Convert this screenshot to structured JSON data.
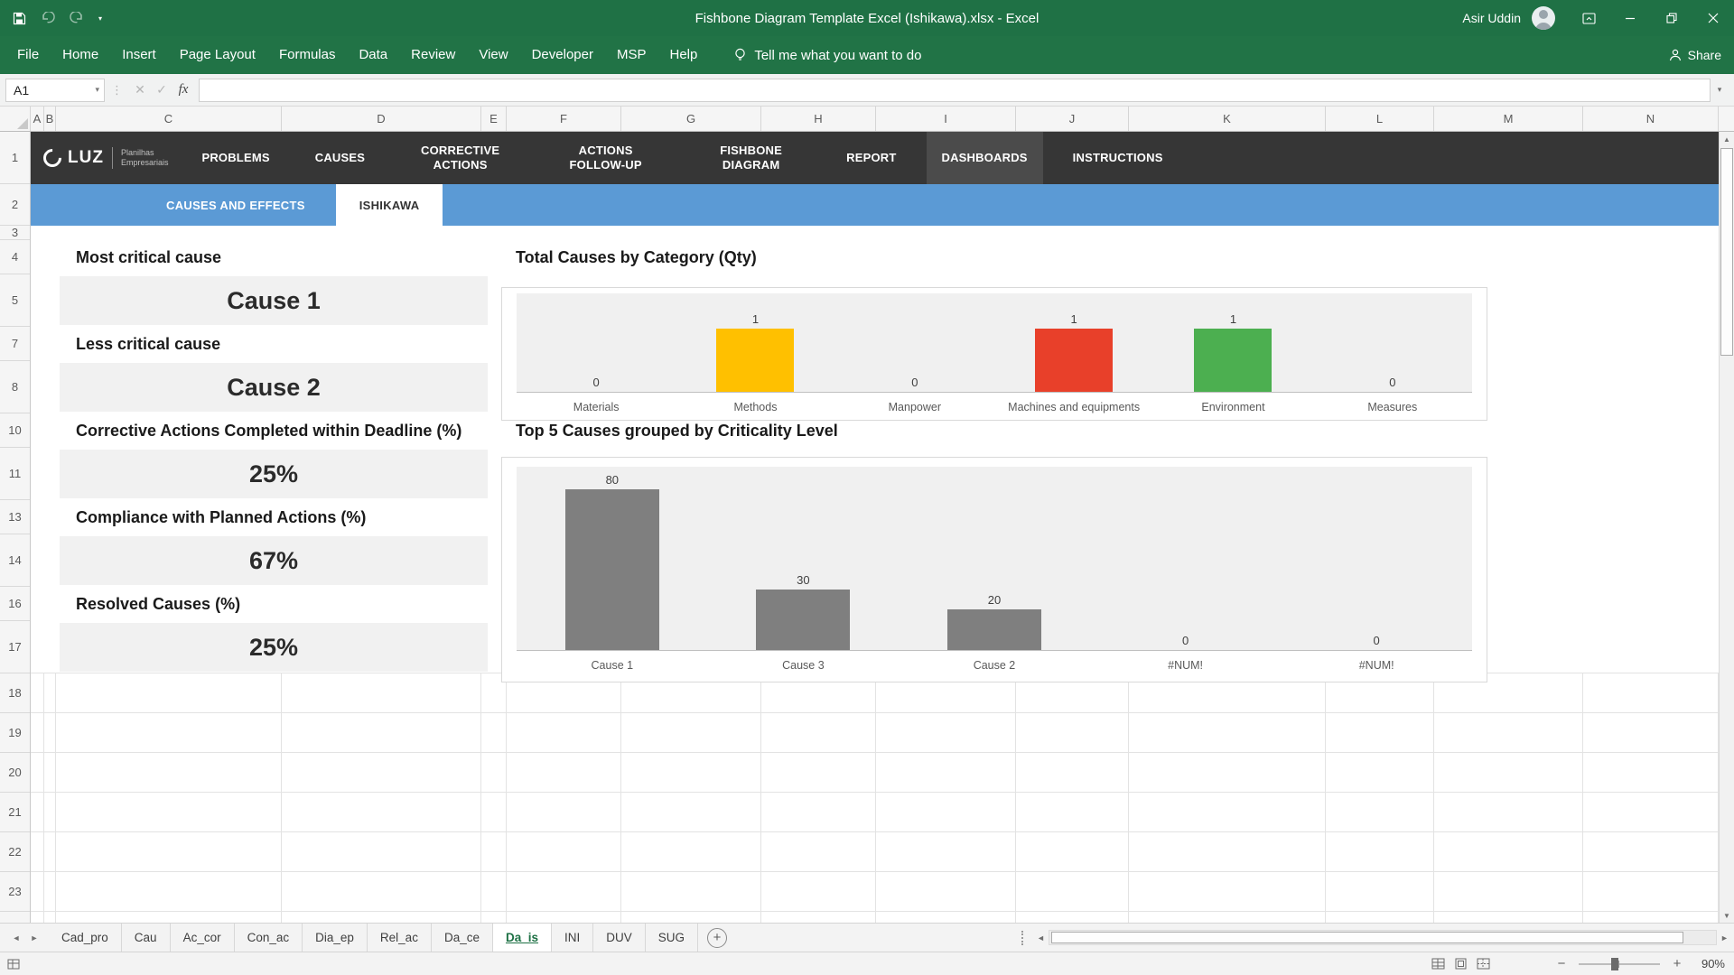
{
  "title_bar": {
    "title": "Fishbone Diagram Template Excel (Ishikawa).xlsx - Excel",
    "user": "Asir Uddin"
  },
  "menu": {
    "items": [
      "File",
      "Home",
      "Insert",
      "Page Layout",
      "Formulas",
      "Data",
      "Review",
      "View",
      "Developer",
      "MSP",
      "Help"
    ],
    "tell_me": "Tell me what you want to do",
    "share": "Share"
  },
  "formula_bar": {
    "name_box": "A1",
    "fx": "fx",
    "formula": ""
  },
  "grid": {
    "columns": [
      "A",
      "B",
      "C",
      "D",
      "E",
      "F",
      "G",
      "H",
      "I",
      "J",
      "K",
      "L",
      "M",
      "N"
    ],
    "rows": [
      "1",
      "2",
      "3",
      "4",
      "5",
      "7",
      "8",
      "10",
      "11",
      "13",
      "14",
      "16",
      "17",
      "18",
      "19",
      "20",
      "21",
      "22",
      "23"
    ]
  },
  "brand": {
    "logo_text": "LUZ",
    "logo_sub1": "Planilhas",
    "logo_sub2": "Empresariais"
  },
  "nav": {
    "items": [
      "PROBLEMS",
      "CAUSES",
      "CORRECTIVE ACTIONS",
      "ACTIONS FOLLOW-UP",
      "FISHBONE DIAGRAM",
      "REPORT",
      "DASHBOARDS",
      "INSTRUCTIONS"
    ],
    "active": "DASHBOARDS"
  },
  "subtabs": {
    "items": [
      "CAUSES AND EFFECTS",
      "ISHIKAWA"
    ],
    "active": "ISHIKAWA"
  },
  "kpis": [
    {
      "label": "Most critical cause",
      "value": "Cause 1"
    },
    {
      "label": "Less critical cause",
      "value": "Cause 2"
    },
    {
      "label": "Corrective Actions Completed within Deadline (%)",
      "value": "25%"
    },
    {
      "label": "Compliance with Planned Actions (%)",
      "value": "67%"
    },
    {
      "label": "Resolved Causes (%)",
      "value": "25%"
    }
  ],
  "chart_data": [
    {
      "type": "bar",
      "title": "Total Causes by Category (Qty)",
      "categories": [
        "Materials",
        "Methods",
        "Manpower",
        "Machines and equipments",
        "Environment",
        "Measures"
      ],
      "values": [
        0,
        1,
        0,
        1,
        1,
        0
      ],
      "colors": [
        "#c0c0c0",
        "#ffc000",
        "#c0c0c0",
        "#e8402a",
        "#4caf50",
        "#c0c0c0"
      ],
      "ylim": [
        0,
        1.56
      ],
      "xlabel": "",
      "ylabel": "",
      "legend": "none",
      "value_labels": true,
      "plot_bg": "#f0f0f0"
    },
    {
      "type": "bar",
      "title": "Top 5 Causes grouped by Criticality Level",
      "categories": [
        "Cause 1",
        "Cause 3",
        "Cause 2",
        "#NUM!",
        "#NUM!"
      ],
      "values": [
        80,
        30,
        20,
        0,
        0
      ],
      "colors": [
        "#7f7f7f",
        "#7f7f7f",
        "#7f7f7f",
        "#7f7f7f",
        "#7f7f7f"
      ],
      "ylim": [
        0,
        91
      ],
      "xlabel": "",
      "ylabel": "",
      "legend": "none",
      "value_labels": true,
      "plot_bg": "#f0f0f0"
    }
  ],
  "sheet_tabs": {
    "tabs": [
      "Cad_pro",
      "Cau",
      "Ac_cor",
      "Con_ac",
      "Dia_ep",
      "Rel_ac",
      "Da_ce",
      "Da_is",
      "INI",
      "DUV",
      "SUG"
    ],
    "active": "Da_is",
    "add_label": "+"
  },
  "status_bar": {
    "zoom": "90%"
  },
  "colors": {
    "excel_green": "#217346",
    "nav_dark": "#363636",
    "nav_active": "#4b4b4b",
    "subtab_blue": "#5b9ad5",
    "kpi_box": "#f1f1f1"
  }
}
